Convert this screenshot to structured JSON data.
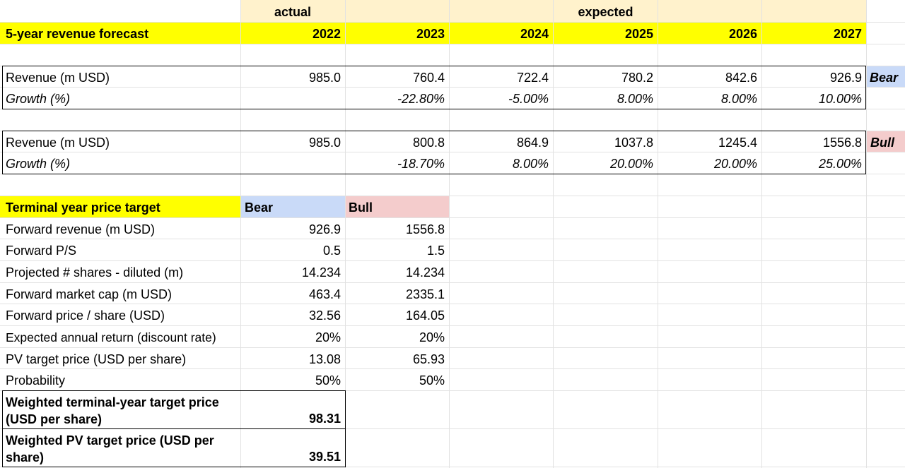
{
  "header": {
    "actual_label": "actual",
    "expected_label": "expected",
    "table_title": "5-year revenue forecast",
    "years": [
      "2022",
      "2023",
      "2024",
      "2025",
      "2026",
      "2027"
    ]
  },
  "bear": {
    "revenue_label": "Revenue (m USD)",
    "growth_label": "Growth (%)",
    "revenue": [
      "985.0",
      "760.4",
      "722.4",
      "780.2",
      "842.6",
      "926.9"
    ],
    "growth": [
      "",
      "-22.80%",
      "-5.00%",
      "8.00%",
      "8.00%",
      "10.00%"
    ],
    "tag": "Bear"
  },
  "bull": {
    "revenue_label": "Revenue (m USD)",
    "growth_label": "Growth (%)",
    "revenue": [
      "985.0",
      "800.8",
      "864.9",
      "1037.8",
      "1245.4",
      "1556.8"
    ],
    "growth": [
      "",
      "-18.70%",
      "8.00%",
      "20.00%",
      "20.00%",
      "25.00%"
    ],
    "tag": "Bull"
  },
  "target": {
    "title": "Terminal year price target",
    "bear_header": "Bear",
    "bull_header": "Bull",
    "rows": [
      {
        "label": "Forward revenue (m USD)",
        "bear": "926.9",
        "bull": "1556.8"
      },
      {
        "label": "Forward P/S",
        "bear": "0.5",
        "bull": "1.5"
      },
      {
        "label": "Projected # shares - diluted (m)",
        "bear": "14.234",
        "bull": "14.234"
      },
      {
        "label": "Forward market cap (m USD)",
        "bear": "463.4",
        "bull": "2335.1"
      },
      {
        "label": "Forward price / share (USD)",
        "bear": "32.56",
        "bull": "164.05"
      },
      {
        "label": "Expected annual return (discount rate)",
        "bear": "20%",
        "bull": "20%"
      },
      {
        "label": "PV target price (USD per share)",
        "bear": "13.08",
        "bull": "65.93"
      },
      {
        "label": "Probability",
        "bear": "50%",
        "bull": "50%"
      }
    ],
    "weighted_terminal": {
      "label_line1": "Weighted terminal-year target price",
      "label_line2": "(USD per share)",
      "value": "98.31"
    },
    "weighted_pv": {
      "label_line1": "Weighted PV target price (USD per",
      "label_line2": "share)",
      "value": "39.51"
    }
  },
  "colors": {
    "header_fill": "#fff2cc",
    "yellow": "#ffff00",
    "bear_fill": "#c9daf8",
    "bull_fill": "#f4cccc",
    "gridline": "#e2e2e2"
  }
}
